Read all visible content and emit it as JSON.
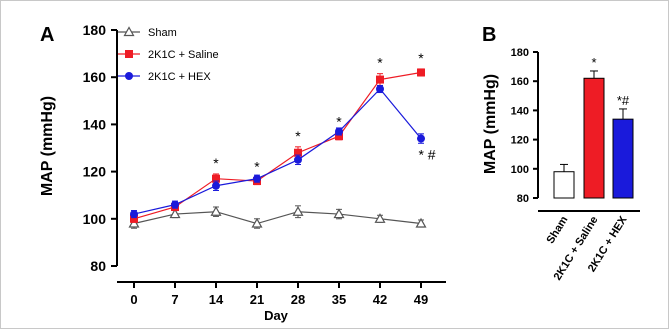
{
  "chart_data": [
    {
      "panel_label": "A",
      "type": "line",
      "xlabel": "Day",
      "ylabel": "MAP (mmHg)",
      "x": [
        0,
        7,
        14,
        21,
        28,
        35,
        42,
        49
      ],
      "xticks": [
        "0",
        "7",
        "14",
        "21",
        "28",
        "35",
        "42",
        "49"
      ],
      "ylim": [
        80,
        180
      ],
      "yticks": [
        "80",
        "100",
        "120",
        "140",
        "160",
        "180"
      ],
      "legend_position": "top-left",
      "series": [
        {
          "name": "Sham",
          "marker": "open-triangle",
          "color": "#555555",
          "values": [
            98,
            102,
            103,
            98,
            103,
            102,
            100,
            98
          ],
          "errors": [
            2,
            1.5,
            2,
            2,
            2.5,
            2,
            1.5,
            1.5
          ],
          "annotations": [
            "",
            "",
            "",
            "",
            "",
            "",
            "",
            ""
          ]
        },
        {
          "name": "2K1C + Saline",
          "marker": "square",
          "color": "#ee1c25",
          "values": [
            100,
            105,
            117,
            116,
            128,
            135,
            159,
            162
          ],
          "errors": [
            1.5,
            1.5,
            2,
            1.5,
            2.5,
            1.5,
            2.5,
            1.5
          ],
          "annotations": [
            "",
            "",
            "*",
            "*",
            "*",
            "*",
            "*",
            "*"
          ]
        },
        {
          "name": "2K1C + HEX",
          "marker": "circle",
          "color": "#1a1adb",
          "values": [
            102,
            106,
            114,
            117,
            125,
            137,
            155,
            134
          ],
          "errors": [
            1.5,
            1.5,
            2,
            1.5,
            2,
            1.5,
            1.5,
            2
          ],
          "annotations": [
            "",
            "",
            "",
            "",
            "",
            "",
            "",
            "* #"
          ]
        }
      ]
    },
    {
      "panel_label": "B",
      "type": "bar",
      "ylabel": "MAP (mmHg)",
      "categories": [
        "Sham",
        "2K1C + Saline",
        "2K1C + HEX"
      ],
      "values": [
        98,
        162,
        134
      ],
      "errors": [
        5,
        5,
        7
      ],
      "colors": [
        "#ffffff",
        "#ee1c25",
        "#1a1adb"
      ],
      "annotations": [
        "",
        "*",
        "*#"
      ],
      "ylim": [
        80,
        180
      ],
      "yticks": [
        "80",
        "100",
        "120",
        "140",
        "160",
        "180"
      ]
    }
  ]
}
